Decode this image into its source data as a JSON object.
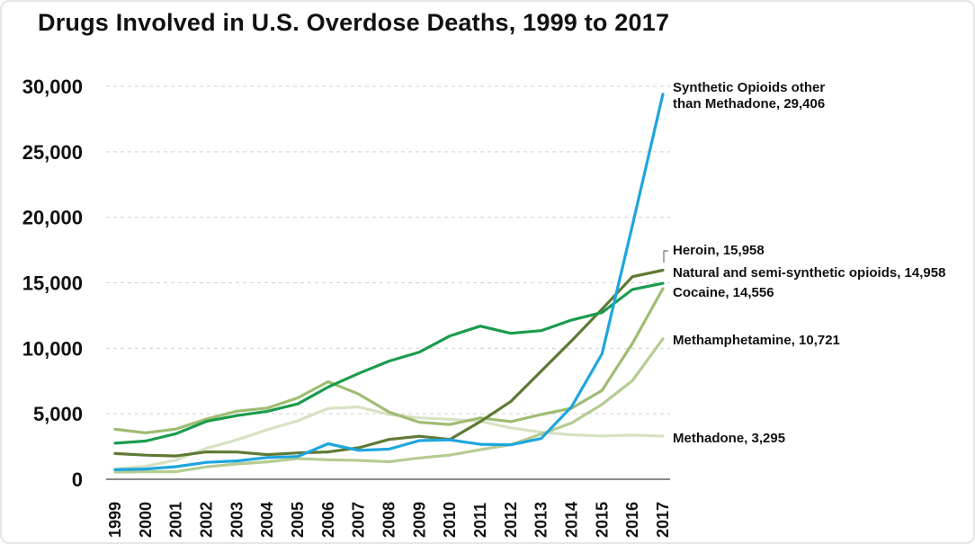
{
  "chart_data": {
    "type": "line",
    "title": "Drugs Involved in U.S. Overdose Deaths, 1999 to 2017",
    "xlabel": "",
    "ylabel": "",
    "ylim": [
      0,
      30000
    ],
    "yticks": [
      0,
      5000,
      10000,
      15000,
      20000,
      25000,
      30000
    ],
    "ytick_labels": [
      "0",
      "5,000",
      "10,000",
      "15,000",
      "20,000",
      "25,000",
      "30,000"
    ],
    "categories": [
      "1999",
      "2000",
      "2001",
      "2002",
      "2003",
      "2004",
      "2005",
      "2006",
      "2007",
      "2008",
      "2009",
      "2010",
      "2011",
      "2012",
      "2013",
      "2014",
      "2015",
      "2016",
      "2017"
    ],
    "grid": "horizontal dashed",
    "series": [
      {
        "name": "Synthetic Opioids other than Methadone",
        "label_lines": [
          "Synthetic Opioids other",
          "than Methadone, 29,406"
        ],
        "color": "#1ea6de",
        "values": [
          730,
          780,
          960,
          1290,
          1400,
          1660,
          1740,
          2710,
          2210,
          2300,
          2950,
          3010,
          2670,
          2630,
          3110,
          5540,
          9580,
          19410,
          29406
        ]
      },
      {
        "name": "Heroin",
        "label_lines": [
          "Heroin, 15,958"
        ],
        "color": "#5e7a34",
        "values": [
          1960,
          1840,
          1780,
          2090,
          2080,
          1880,
          2010,
          2090,
          2400,
          3040,
          3280,
          3040,
          4400,
          5930,
          8260,
          10570,
          12990,
          15470,
          15958
        ]
      },
      {
        "name": "Natural and semi-synthetic opioids",
        "label_lines": [
          "Natural and semi-synthetic opioids, 14,958"
        ],
        "color": "#1a9c4c",
        "values": [
          2750,
          2920,
          3480,
          4420,
          4860,
          5190,
          5750,
          7040,
          8080,
          9020,
          9710,
          10940,
          11690,
          11140,
          11350,
          12160,
          12730,
          14490,
          14958
        ]
      },
      {
        "name": "Cocaine",
        "label_lines": [
          "Cocaine, 14,556"
        ],
        "color": "#9fbc72",
        "values": [
          3820,
          3540,
          3830,
          4600,
          5200,
          5440,
          6210,
          7450,
          6510,
          5130,
          4350,
          4180,
          4680,
          4400,
          4940,
          5420,
          6780,
          10380,
          14556
        ]
      },
      {
        "name": "Methamphetamine",
        "label_lines": [
          "Methamphetamine, 10,721"
        ],
        "color": "#b5cc92",
        "values": [
          550,
          580,
          580,
          950,
          1170,
          1330,
          1580,
          1480,
          1440,
          1340,
          1630,
          1850,
          2260,
          2640,
          3450,
          4300,
          5720,
          7540,
          10721
        ]
      },
      {
        "name": "Methadone",
        "label_lines": [
          "Methadone, 3,295"
        ],
        "color": "#d6e2c2",
        "values": [
          780,
          990,
          1460,
          2360,
          3010,
          3780,
          4460,
          5410,
          5520,
          4940,
          4690,
          4580,
          4420,
          3930,
          3590,
          3400,
          3300,
          3370,
          3295
        ]
      }
    ]
  }
}
